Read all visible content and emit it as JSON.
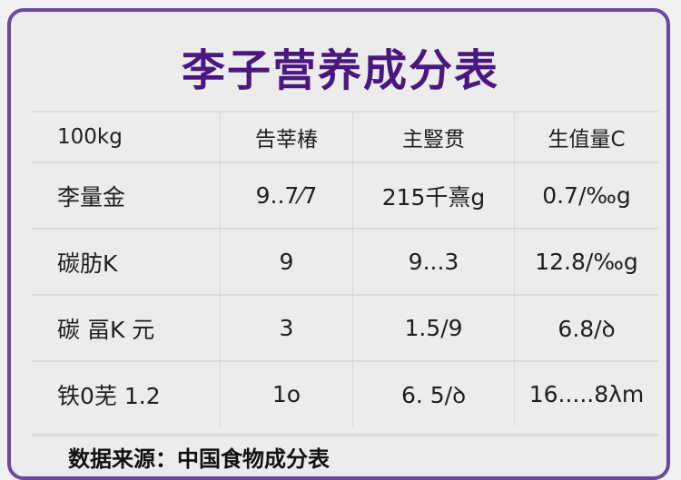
{
  "title": "李子营养成分表",
  "table": {
    "headers": [
      "100kg",
      "告莘椿",
      "主豎贯",
      "生值量C"
    ],
    "rows": [
      [
        "李量金",
        "9..7⁄7",
        "215千熹g",
        "0.7/‰g"
      ],
      [
        "碳肪K",
        "9",
        "9...3",
        "12.8/‰g"
      ],
      [
        "碳 畐K 元",
        "3",
        "1.5/9",
        "6.8/ꝺ"
      ],
      [
        "铁0芜 1.2",
        "1o",
        "6. 5/ꝺ",
        "16.....8λm"
      ]
    ]
  },
  "footer": "数据来源：中国食物成分表"
}
